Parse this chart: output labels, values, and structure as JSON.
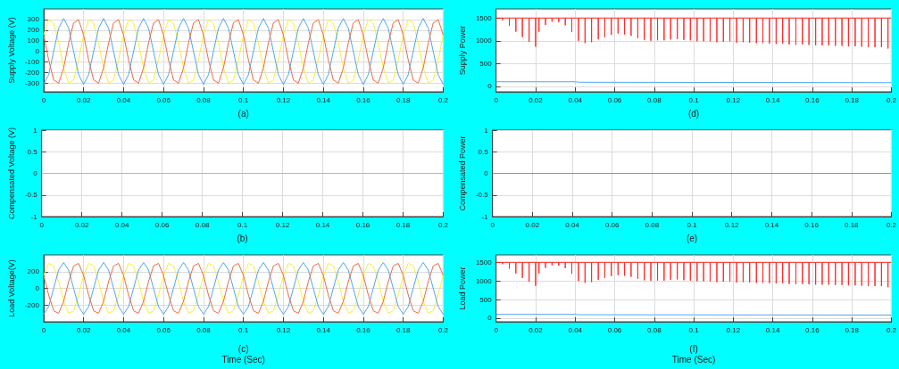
{
  "chart_data": [
    {
      "type": "line",
      "xlabel": "(a)",
      "ylabel": "Supply Voltage (V)",
      "xlim": [
        0,
        0.2
      ],
      "xticks": [
        0,
        0.02,
        0.04,
        0.06,
        0.08,
        0.1,
        0.12,
        0.14,
        0.16,
        0.18,
        0.2
      ],
      "ylim": [
        -380,
        400
      ],
      "yticks": [
        -300,
        -200,
        -100,
        0,
        100,
        200,
        300
      ],
      "grid": true,
      "marker": "none",
      "line_style": "solid",
      "x": [
        0,
        0.0025,
        0.005,
        0.0075,
        0.01,
        0.0125,
        0.015,
        0.0175,
        0.02,
        0.0225,
        0.025,
        0.0275,
        0.03,
        0.0325,
        0.035,
        0.0375,
        0.04,
        0.0425,
        0.045,
        0.0475,
        0.05,
        0.0525,
        0.055,
        0.0575,
        0.06,
        0.0625,
        0.065,
        0.0675,
        0.07,
        0.0725,
        0.075,
        0.0775,
        0.08,
        0.0825,
        0.085,
        0.0875,
        0.09,
        0.0925,
        0.095,
        0.0975,
        0.1,
        0.1025,
        0.105,
        0.1075,
        0.11,
        0.1125,
        0.115,
        0.1175,
        0.12,
        0.1225,
        0.125,
        0.1275,
        0.13,
        0.1325,
        0.135,
        0.1375,
        0.14,
        0.1425,
        0.145,
        0.1475,
        0.15,
        0.1525,
        0.155,
        0.1575,
        0.16,
        0.1625,
        0.165,
        0.1675,
        0.17,
        0.1725,
        0.175,
        0.1775,
        0.18,
        0.1825,
        0.185,
        0.1875,
        0.19,
        0.1925,
        0.195,
        0.1975,
        0.2
      ],
      "series": [
        {
          "color": "#f5f03c",
          "values": [
            155,
            299,
            268,
            80,
            -155,
            -299,
            -268,
            -80,
            155,
            299,
            268,
            80,
            -155,
            -299,
            -268,
            -80,
            155,
            299,
            268,
            80,
            -155,
            -299,
            -268,
            -80,
            155,
            299,
            268,
            80,
            -155,
            -299,
            -268,
            -80,
            155,
            299,
            268,
            80,
            -155,
            -299,
            -268,
            -80,
            155,
            299,
            268,
            80,
            -155,
            -299,
            -268,
            -80,
            155,
            299,
            268,
            80,
            -155,
            -299,
            -268,
            -80,
            155,
            299,
            268,
            80,
            -155,
            -299,
            -268,
            -80,
            155,
            299,
            268,
            80,
            -155,
            -299,
            -268,
            -80,
            155,
            299,
            268,
            80,
            -155,
            -299,
            -268,
            -80,
            155
          ]
        },
        {
          "color": "#4fa6f0",
          "values": [
            -310,
            -219,
            0,
            219,
            310,
            219,
            0,
            -219,
            -310,
            -219,
            0,
            219,
            310,
            219,
            0,
            -219,
            -310,
            -219,
            0,
            219,
            310,
            219,
            0,
            -219,
            -310,
            -219,
            0,
            219,
            310,
            219,
            0,
            -219,
            -310,
            -219,
            0,
            219,
            310,
            219,
            0,
            -219,
            -310,
            -219,
            0,
            219,
            310,
            219,
            0,
            -219,
            -310,
            -219,
            0,
            219,
            310,
            219,
            0,
            -219,
            -310,
            -219,
            0,
            219,
            310,
            219,
            0,
            -219,
            -310,
            -219,
            0,
            219,
            310,
            219,
            0,
            -219,
            -310,
            -219,
            0,
            219,
            310,
            219,
            0,
            -219,
            -310
          ]
        },
        {
          "color": "#f06a40",
          "values": [
            155,
            -80,
            -268,
            -299,
            -155,
            80,
            268,
            299,
            155,
            -80,
            -268,
            -299,
            -155,
            80,
            268,
            299,
            155,
            -80,
            -268,
            -299,
            -155,
            80,
            268,
            299,
            155,
            -80,
            -268,
            -299,
            -155,
            80,
            268,
            299,
            155,
            -80,
            -268,
            -299,
            -155,
            80,
            268,
            299,
            155,
            -80,
            -268,
            -299,
            -155,
            80,
            268,
            299,
            155,
            -80,
            -268,
            -299,
            -155,
            80,
            268,
            299,
            155,
            -80,
            -268,
            -299,
            -155,
            80,
            268,
            299,
            155,
            -80,
            -268,
            -299,
            -155,
            80,
            268,
            299,
            155,
            -80,
            -268,
            -299,
            -155,
            80,
            268,
            299,
            155
          ]
        }
      ]
    },
    {
      "type": "line",
      "xlabel": "(d)",
      "ylabel": "Supply Power",
      "xlim": [
        0,
        0.2
      ],
      "xticks": [
        0,
        0.02,
        0.04,
        0.06,
        0.08,
        0.1,
        0.12,
        0.14,
        0.16,
        0.18,
        0.2
      ],
      "ylim": [
        -120,
        1700
      ],
      "yticks": [
        0,
        500,
        1000,
        1500
      ],
      "grid": true,
      "marker": "none",
      "line_style": "solid",
      "series": [
        {
          "color": "#ff2a2a",
          "x": [
            0,
            0.0033,
            0.0033,
            0.0033,
            0.0067,
            0.0067,
            0.0067,
            0.01,
            0.01,
            0.01,
            0.0133,
            0.0133,
            0.0133,
            0.0167,
            0.0167,
            0.0167,
            0.02,
            0.02,
            0.02,
            0.0217,
            0.0217,
            0.0217,
            0.025,
            0.025,
            0.025,
            0.0283,
            0.0283,
            0.0283,
            0.0317,
            0.0317,
            0.0317,
            0.035,
            0.035,
            0.035,
            0.0383,
            0.0383,
            0.0383,
            0.0417,
            0.0417,
            0.0417,
            0.045,
            0.045,
            0.045,
            0.0483,
            0.0483,
            0.0483,
            0.0517,
            0.0517,
            0.0517,
            0.055,
            0.055,
            0.055,
            0.0583,
            0.0583,
            0.0583,
            0.0617,
            0.0617,
            0.0617,
            0.065,
            0.065,
            0.065,
            0.0683,
            0.0683,
            0.0683,
            0.0717,
            0.0717,
            0.0717,
            0.075,
            0.075,
            0.075,
            0.0783,
            0.0783,
            0.0783,
            0.0817,
            0.0817,
            0.0817,
            0.085,
            0.085,
            0.085,
            0.0883,
            0.0883,
            0.0883,
            0.0917,
            0.0917,
            0.0917,
            0.095,
            0.095,
            0.095,
            0.0983,
            0.0983,
            0.0983,
            0.1017,
            0.1017,
            0.1017,
            0.105,
            0.105,
            0.105,
            0.1083,
            0.1083,
            0.1083,
            0.1117,
            0.1117,
            0.1117,
            0.115,
            0.115,
            0.115,
            0.1183,
            0.1183,
            0.1183,
            0.1217,
            0.1217,
            0.1217,
            0.125,
            0.125,
            0.125,
            0.1283,
            0.1283,
            0.1283,
            0.1317,
            0.1317,
            0.1317,
            0.135,
            0.135,
            0.135,
            0.1383,
            0.1383,
            0.1383,
            0.1417,
            0.1417,
            0.1417,
            0.145,
            0.145,
            0.145,
            0.1483,
            0.1483,
            0.1483,
            0.1517,
            0.1517,
            0.1517,
            0.155,
            0.155,
            0.155,
            0.1583,
            0.1583,
            0.1583,
            0.1617,
            0.1617,
            0.1617,
            0.165,
            0.165,
            0.165,
            0.1683,
            0.1683,
            0.1683,
            0.1717,
            0.1717,
            0.1717,
            0.175,
            0.175,
            0.175,
            0.1783,
            0.1783,
            0.1783,
            0.1817,
            0.1817,
            0.1817,
            0.185,
            0.185,
            0.185,
            0.1883,
            0.1883,
            0.1883,
            0.1917,
            0.1917,
            0.1917,
            0.195,
            0.195,
            0.195,
            0.1983,
            0.1983,
            0.1983,
            0.2
          ],
          "values": [
            1500,
            1500,
            1450,
            1500,
            1500,
            1330,
            1500,
            1500,
            1200,
            1500,
            1500,
            1080,
            1500,
            1500,
            980,
            1500,
            1500,
            870,
            1500,
            1500,
            1200,
            1500,
            1500,
            1350,
            1500,
            1500,
            1420,
            1500,
            1500,
            1410,
            1500,
            1500,
            1340,
            1500,
            1500,
            1190,
            1500,
            1500,
            1000,
            1500,
            1500,
            950,
            1500,
            1500,
            970,
            1500,
            1500,
            1030,
            1500,
            1500,
            1080,
            1500,
            1500,
            1130,
            1500,
            1500,
            1160,
            1500,
            1500,
            1140,
            1500,
            1500,
            1110,
            1500,
            1500,
            1060,
            1500,
            1500,
            1020,
            1500,
            1500,
            1000,
            1500,
            1500,
            1010,
            1500,
            1500,
            1010,
            1500,
            1500,
            1030,
            1500,
            1500,
            1040,
            1500,
            1500,
            1020,
            1500,
            1500,
            1010,
            1500,
            1500,
            990,
            1500,
            1500,
            990,
            1500,
            1500,
            990,
            1500,
            1500,
            970,
            1500,
            1500,
            980,
            1500,
            1500,
            990,
            1500,
            1500,
            960,
            1500,
            1500,
            970,
            1500,
            1500,
            960,
            1500,
            1500,
            950,
            1500,
            1500,
            950,
            1500,
            1500,
            940,
            1500,
            1500,
            930,
            1500,
            1500,
            940,
            1500,
            1500,
            920,
            1500,
            1500,
            910,
            1500,
            1500,
            920,
            1500,
            1500,
            910,
            1500,
            1500,
            900,
            1500,
            1500,
            900,
            1500,
            1500,
            900,
            1500,
            1500,
            890,
            1500,
            1500,
            890,
            1500,
            1500,
            880,
            1500,
            1500,
            880,
            1500,
            1500,
            870,
            1500,
            1500,
            860,
            1500,
            1500,
            860,
            1500,
            1500,
            860,
            1500,
            1500,
            830,
            1500,
            1500
          ]
        },
        {
          "color": "#4fa6f0",
          "x": [
            0,
            0.04,
            0.042,
            0.2
          ],
          "values": [
            100,
            100,
            90,
            80
          ]
        }
      ]
    },
    {
      "type": "line",
      "xlabel": "(b)",
      "ylabel": "Compensated Voltage (V)",
      "xlim": [
        0,
        0.2
      ],
      "xticks": [
        0,
        0.02,
        0.04,
        0.06,
        0.08,
        0.1,
        0.12,
        0.14,
        0.16,
        0.18,
        0.2
      ],
      "ylim": [
        -1,
        1
      ],
      "yticks": [
        -1,
        -0.5,
        0,
        0.5,
        1
      ],
      "grid": true,
      "marker": "none",
      "line_style": "solid",
      "series": [
        {
          "color": "#f7a080",
          "x": [
            0,
            0.2
          ],
          "values": [
            0,
            0
          ]
        }
      ]
    },
    {
      "type": "line",
      "xlabel": "(e)",
      "ylabel": "Compensated Power",
      "xlim": [
        0,
        0.2
      ],
      "xticks": [
        0,
        0.02,
        0.04,
        0.06,
        0.08,
        0.1,
        0.12,
        0.14,
        0.16,
        0.18,
        0.2
      ],
      "ylim": [
        -1,
        1
      ],
      "yticks": [
        -1,
        -0.5,
        0,
        0.5,
        1
      ],
      "grid": true,
      "marker": "none",
      "line_style": "solid",
      "series": [
        {
          "color": "#4fa6f0",
          "x": [
            0,
            0.2
          ],
          "values": [
            0,
            0
          ]
        }
      ]
    },
    {
      "type": "line",
      "xlabel": "(c)\nTime (Sec)",
      "ylabel": "Load Voltage(V)",
      "xlim": [
        0,
        0.2
      ],
      "xticks": [
        0,
        0.02,
        0.04,
        0.06,
        0.08,
        0.1,
        0.12,
        0.14,
        0.16,
        0.18,
        0.2
      ],
      "ylim": [
        -400,
        400
      ],
      "yticks": [
        -200,
        0,
        200
      ],
      "grid": true,
      "marker": "none",
      "line_style": "solid",
      "x": [
        0,
        0.0025,
        0.005,
        0.0075,
        0.01,
        0.0125,
        0.015,
        0.0175,
        0.02,
        0.0225,
        0.025,
        0.0275,
        0.03,
        0.0325,
        0.035,
        0.0375,
        0.04,
        0.0425,
        0.045,
        0.0475,
        0.05,
        0.0525,
        0.055,
        0.0575,
        0.06,
        0.0625,
        0.065,
        0.0675,
        0.07,
        0.0725,
        0.075,
        0.0775,
        0.08,
        0.0825,
        0.085,
        0.0875,
        0.09,
        0.0925,
        0.095,
        0.0975,
        0.1,
        0.1025,
        0.105,
        0.1075,
        0.11,
        0.1125,
        0.115,
        0.1175,
        0.12,
        0.1225,
        0.125,
        0.1275,
        0.13,
        0.1325,
        0.135,
        0.1375,
        0.14,
        0.1425,
        0.145,
        0.1475,
        0.15,
        0.1525,
        0.155,
        0.1575,
        0.16,
        0.1625,
        0.165,
        0.1675,
        0.17,
        0.1725,
        0.175,
        0.1775,
        0.18,
        0.1825,
        0.185,
        0.1875,
        0.19,
        0.1925,
        0.195,
        0.1975,
        0.2
      ],
      "series": [
        {
          "color": "#f5f03c",
          "values": [
            155,
            299,
            268,
            80,
            -155,
            -299,
            -268,
            -80,
            155,
            299,
            268,
            80,
            -155,
            -299,
            -268,
            -80,
            155,
            299,
            268,
            80,
            -155,
            -299,
            -268,
            -80,
            155,
            299,
            268,
            80,
            -155,
            -299,
            -268,
            -80,
            155,
            299,
            268,
            80,
            -155,
            -299,
            -268,
            -80,
            155,
            299,
            268,
            80,
            -155,
            -299,
            -268,
            -80,
            155,
            299,
            268,
            80,
            -155,
            -299,
            -268,
            -80,
            155,
            299,
            268,
            80,
            -155,
            -299,
            -268,
            -80,
            155,
            299,
            268,
            80,
            -155,
            -299,
            -268,
            -80,
            155,
            299,
            268,
            80,
            -155,
            -299,
            -268,
            -80,
            155
          ]
        },
        {
          "color": "#4fa6f0",
          "values": [
            -310,
            -219,
            0,
            219,
            310,
            219,
            0,
            -219,
            -310,
            -219,
            0,
            219,
            310,
            219,
            0,
            -219,
            -310,
            -219,
            0,
            219,
            310,
            219,
            0,
            -219,
            -310,
            -219,
            0,
            219,
            310,
            219,
            0,
            -219,
            -310,
            -219,
            0,
            219,
            310,
            219,
            0,
            -219,
            -310,
            -219,
            0,
            219,
            310,
            219,
            0,
            -219,
            -310,
            -219,
            0,
            219,
            310,
            219,
            0,
            -219,
            -310,
            -219,
            0,
            219,
            310,
            219,
            0,
            -219,
            -310,
            -219,
            0,
            219,
            310,
            219,
            0,
            -219,
            -310,
            -219,
            0,
            219,
            310,
            219,
            0,
            -219,
            -310
          ]
        },
        {
          "color": "#f06a40",
          "values": [
            155,
            -80,
            -268,
            -299,
            -155,
            80,
            268,
            299,
            155,
            -80,
            -268,
            -299,
            -155,
            80,
            268,
            299,
            155,
            -80,
            -268,
            -299,
            -155,
            80,
            268,
            299,
            155,
            -80,
            -268,
            -299,
            -155,
            80,
            268,
            299,
            155,
            -80,
            -268,
            -299,
            -155,
            80,
            268,
            299,
            155,
            -80,
            -268,
            -299,
            -155,
            80,
            268,
            299,
            155,
            -80,
            -268,
            -299,
            -155,
            80,
            268,
            299,
            155,
            -80,
            -268,
            -299,
            -155,
            80,
            268,
            299,
            155,
            -80,
            -268,
            -299,
            -155,
            80,
            268,
            299,
            155,
            -80,
            -268,
            -299,
            -155,
            80,
            268,
            299,
            155
          ]
        }
      ]
    },
    {
      "type": "line",
      "xlabel": "(f)\nTime (Sec)",
      "ylabel": "Load Power",
      "xlim": [
        0,
        0.2
      ],
      "xticks": [
        0,
        0.02,
        0.04,
        0.06,
        0.08,
        0.1,
        0.12,
        0.14,
        0.16,
        0.18,
        0.2
      ],
      "ylim": [
        -100,
        1700
      ],
      "yticks": [
        0,
        500,
        1000,
        1500
      ],
      "grid": true,
      "marker": "none",
      "line_style": "solid",
      "series": [
        {
          "color": "#ff2a2a",
          "x": [
            0,
            0.0033,
            0.0033,
            0.0033,
            0.0067,
            0.0067,
            0.0067,
            0.01,
            0.01,
            0.01,
            0.0133,
            0.0133,
            0.0133,
            0.0167,
            0.0167,
            0.0167,
            0.02,
            0.02,
            0.02,
            0.0217,
            0.0217,
            0.0217,
            0.025,
            0.025,
            0.025,
            0.0283,
            0.0283,
            0.0283,
            0.0317,
            0.0317,
            0.0317,
            0.035,
            0.035,
            0.035,
            0.0383,
            0.0383,
            0.0383,
            0.0417,
            0.0417,
            0.0417,
            0.045,
            0.045,
            0.045,
            0.0483,
            0.0483,
            0.0483,
            0.0517,
            0.0517,
            0.0517,
            0.055,
            0.055,
            0.055,
            0.0583,
            0.0583,
            0.0583,
            0.0617,
            0.0617,
            0.0617,
            0.065,
            0.065,
            0.065,
            0.0683,
            0.0683,
            0.0683,
            0.0717,
            0.0717,
            0.0717,
            0.075,
            0.075,
            0.075,
            0.0783,
            0.0783,
            0.0783,
            0.0817,
            0.0817,
            0.0817,
            0.085,
            0.085,
            0.085,
            0.0883,
            0.0883,
            0.0883,
            0.0917,
            0.0917,
            0.0917,
            0.095,
            0.095,
            0.095,
            0.0983,
            0.0983,
            0.0983,
            0.1017,
            0.1017,
            0.1017,
            0.105,
            0.105,
            0.105,
            0.1083,
            0.1083,
            0.1083,
            0.1117,
            0.1117,
            0.1117,
            0.115,
            0.115,
            0.115,
            0.1183,
            0.1183,
            0.1183,
            0.1217,
            0.1217,
            0.1217,
            0.125,
            0.125,
            0.125,
            0.1283,
            0.1283,
            0.1283,
            0.1317,
            0.1317,
            0.1317,
            0.135,
            0.135,
            0.135,
            0.1383,
            0.1383,
            0.1383,
            0.1417,
            0.1417,
            0.1417,
            0.145,
            0.145,
            0.145,
            0.1483,
            0.1483,
            0.1483,
            0.1517,
            0.1517,
            0.1517,
            0.155,
            0.155,
            0.155,
            0.1583,
            0.1583,
            0.1583,
            0.1617,
            0.1617,
            0.1617,
            0.165,
            0.165,
            0.165,
            0.1683,
            0.1683,
            0.1683,
            0.1717,
            0.1717,
            0.1717,
            0.175,
            0.175,
            0.175,
            0.1783,
            0.1783,
            0.1783,
            0.1817,
            0.1817,
            0.1817,
            0.185,
            0.185,
            0.185,
            0.1883,
            0.1883,
            0.1883,
            0.1917,
            0.1917,
            0.1917,
            0.195,
            0.195,
            0.195,
            0.1983,
            0.1983,
            0.1983,
            0.2
          ],
          "values": [
            1500,
            1500,
            1450,
            1500,
            1500,
            1330,
            1500,
            1500,
            1200,
            1500,
            1500,
            1080,
            1500,
            1500,
            980,
            1500,
            1500,
            870,
            1500,
            1500,
            1200,
            1500,
            1500,
            1350,
            1500,
            1500,
            1420,
            1500,
            1500,
            1410,
            1500,
            1500,
            1340,
            1500,
            1500,
            1190,
            1500,
            1500,
            1000,
            1500,
            1500,
            950,
            1500,
            1500,
            970,
            1500,
            1500,
            1030,
            1500,
            1500,
            1080,
            1500,
            1500,
            1130,
            1500,
            1500,
            1160,
            1500,
            1500,
            1140,
            1500,
            1500,
            1110,
            1500,
            1500,
            1060,
            1500,
            1500,
            1020,
            1500,
            1500,
            1000,
            1500,
            1500,
            1010,
            1500,
            1500,
            1010,
            1500,
            1500,
            1030,
            1500,
            1500,
            1040,
            1500,
            1500,
            1020,
            1500,
            1500,
            1010,
            1500,
            1500,
            990,
            1500,
            1500,
            990,
            1500,
            1500,
            990,
            1500,
            1500,
            970,
            1500,
            1500,
            980,
            1500,
            1500,
            990,
            1500,
            1500,
            960,
            1500,
            1500,
            970,
            1500,
            1500,
            960,
            1500,
            1500,
            950,
            1500,
            1500,
            950,
            1500,
            1500,
            940,
            1500,
            1500,
            930,
            1500,
            1500,
            940,
            1500,
            1500,
            920,
            1500,
            1500,
            910,
            1500,
            1500,
            920,
            1500,
            1500,
            910,
            1500,
            1500,
            900,
            1500,
            1500,
            900,
            1500,
            1500,
            900,
            1500,
            1500,
            890,
            1500,
            1500,
            890,
            1500,
            1500,
            880,
            1500,
            1500,
            880,
            1500,
            1500,
            870,
            1500,
            1500,
            860,
            1500,
            1500,
            860,
            1500,
            1500,
            860,
            1500,
            1500,
            830,
            1500,
            1500
          ]
        },
        {
          "color": "#4fa6f0",
          "x": [
            0,
            0.04,
            0.042,
            0.2
          ],
          "values": [
            100,
            100,
            90,
            80
          ]
        }
      ]
    }
  ]
}
